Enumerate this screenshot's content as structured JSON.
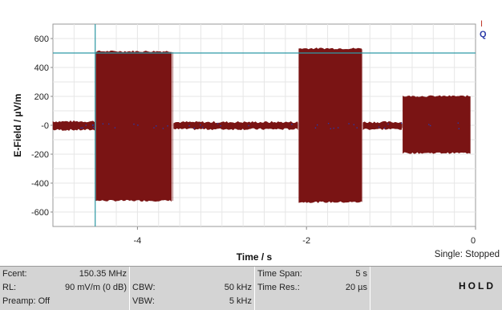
{
  "chart_data": {
    "type": "line",
    "title": "",
    "xlabel": "Time / s",
    "ylabel": "E-Field / µV/m",
    "xlim": [
      -5,
      0
    ],
    "ylim": [
      -700,
      700
    ],
    "x_ticks": [
      -4,
      -2,
      0
    ],
    "x_tick_labels": [
      "-4",
      "-2",
      "0"
    ],
    "y_ticks": [
      600,
      400,
      200,
      0,
      -200,
      -400,
      -600
    ],
    "y_tick_labels": [
      "600",
      "400",
      "200",
      "-0",
      "-200",
      "-400",
      "-600"
    ],
    "grid": true,
    "legend": [
      "I",
      "Q"
    ],
    "legend_position": "top-right",
    "cursor": {
      "x": -4.5,
      "y": 500
    },
    "series": [
      {
        "name": "I",
        "color": "#7a1414",
        "envelope": [
          {
            "x": -5.0,
            "upper": 25,
            "lower": -30
          },
          {
            "x": -4.5,
            "upper": 25,
            "lower": -30
          },
          {
            "x": -4.49,
            "upper": 510,
            "lower": -520
          },
          {
            "x": -3.58,
            "upper": 510,
            "lower": -520
          },
          {
            "x": -3.57,
            "upper": 20,
            "lower": -25
          },
          {
            "x": -2.1,
            "upper": 20,
            "lower": -25
          },
          {
            "x": -2.09,
            "upper": 530,
            "lower": -530
          },
          {
            "x": -1.34,
            "upper": 530,
            "lower": -530
          },
          {
            "x": -1.33,
            "upper": 20,
            "lower": -25
          },
          {
            "x": -0.87,
            "upper": 20,
            "lower": -25
          },
          {
            "x": -0.86,
            "upper": 200,
            "lower": -190
          },
          {
            "x": -0.05,
            "upper": 200,
            "lower": -190
          }
        ]
      },
      {
        "name": "Q",
        "color": "#2a3aa8",
        "envelope": []
      }
    ]
  },
  "status": "Single: Stopped",
  "info": {
    "fcent_label": "Fcent:",
    "fcent_value": "150.35 MHz",
    "rl_label": "RL:",
    "rl_value": "90 mV/m (0 dB)",
    "preamp_label": "Preamp: Off",
    "cbw_label": "CBW:",
    "cbw_value": "50 kHz",
    "vbw_label": "VBW:",
    "vbw_value": "5 kHz",
    "span_label": "Time Span:",
    "span_value": "5 s",
    "res_label": "Time Res.:",
    "res_value": "20 µs",
    "hold": "HOLD"
  },
  "colors": {
    "accent": "#2f9aa6",
    "trace": "#7a1414",
    "q": "#2a3aa8",
    "panel": "#d4d4d4"
  }
}
